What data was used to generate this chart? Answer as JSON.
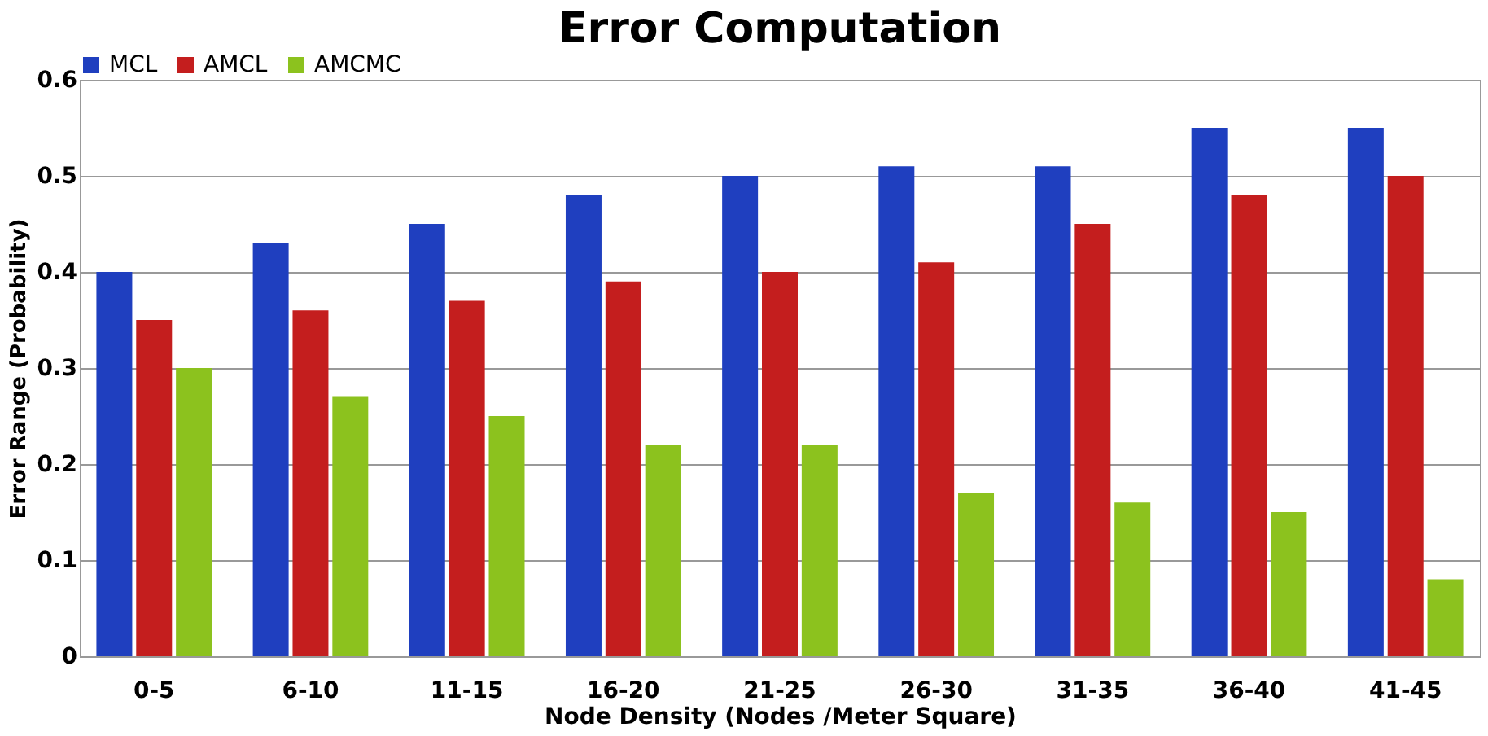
{
  "chart_data": {
    "type": "bar",
    "title": "Error Computation",
    "xlabel": "Node Density (Nodes /Meter Square)",
    "ylabel": "Error Range (Probability)",
    "categories": [
      "0-5",
      "6-10",
      "11-15",
      "16-20",
      "21-25",
      "26-30",
      "31-35",
      "36-40",
      "41-45"
    ],
    "series": [
      {
        "name": "MCL",
        "color": "#1f3fbf",
        "values": [
          0.4,
          0.43,
          0.45,
          0.48,
          0.5,
          0.51,
          0.51,
          0.55,
          0.55
        ]
      },
      {
        "name": "AMCL",
        "color": "#c41e1e",
        "values": [
          0.35,
          0.36,
          0.37,
          0.39,
          0.4,
          0.41,
          0.45,
          0.48,
          0.5
        ]
      },
      {
        "name": "AMCMC",
        "color": "#8cc21e",
        "values": [
          0.3,
          0.27,
          0.25,
          0.22,
          0.22,
          0.17,
          0.16,
          0.15,
          0.08
        ]
      }
    ],
    "ylim": [
      0,
      0.6
    ],
    "yticks": [
      0,
      0.1,
      0.2,
      0.3,
      0.4,
      0.5,
      0.6
    ],
    "grid": "y",
    "legend": "top"
  }
}
